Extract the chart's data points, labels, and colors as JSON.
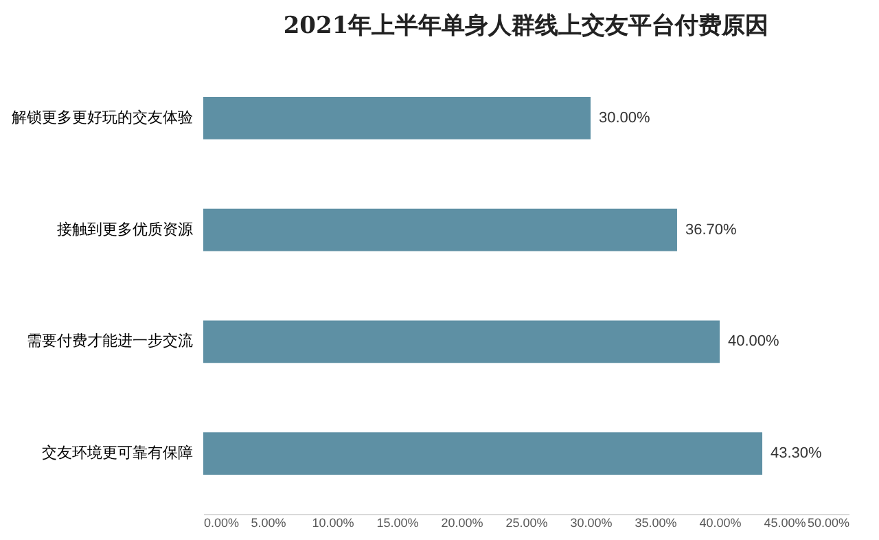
{
  "chart_data": {
    "type": "bar",
    "orientation": "horizontal",
    "title": "2021年上半年单身人群线上交友平台付费原因",
    "categories": [
      "解锁更多更好玩的交友体验",
      "接触到更多优质资源",
      "需要付费才能进一步交流",
      "交友环境更可靠有保障"
    ],
    "values": [
      30,
      36.7,
      40,
      43.3
    ],
    "value_labels": [
      "30.00%",
      "36.70%",
      "40.00%",
      "43.30%"
    ],
    "color": "#5e90a4",
    "xlim": [
      0,
      50
    ],
    "xticks": [
      {
        "value": 0,
        "label": "0.00%"
      },
      {
        "value": 5,
        "label": "5.00%"
      },
      {
        "value": 10,
        "label": "10.00%"
      },
      {
        "value": 15,
        "label": "15.00%"
      },
      {
        "value": 20,
        "label": "20.00%"
      },
      {
        "value": 25,
        "label": "25.00%"
      },
      {
        "value": 30,
        "label": "30.00%"
      },
      {
        "value": 35,
        "label": "35.00%"
      },
      {
        "value": 40,
        "label": "40.00%"
      },
      {
        "value": 45,
        "label": "45.00%"
      },
      {
        "value": 50,
        "label": "50.00%"
      }
    ]
  }
}
